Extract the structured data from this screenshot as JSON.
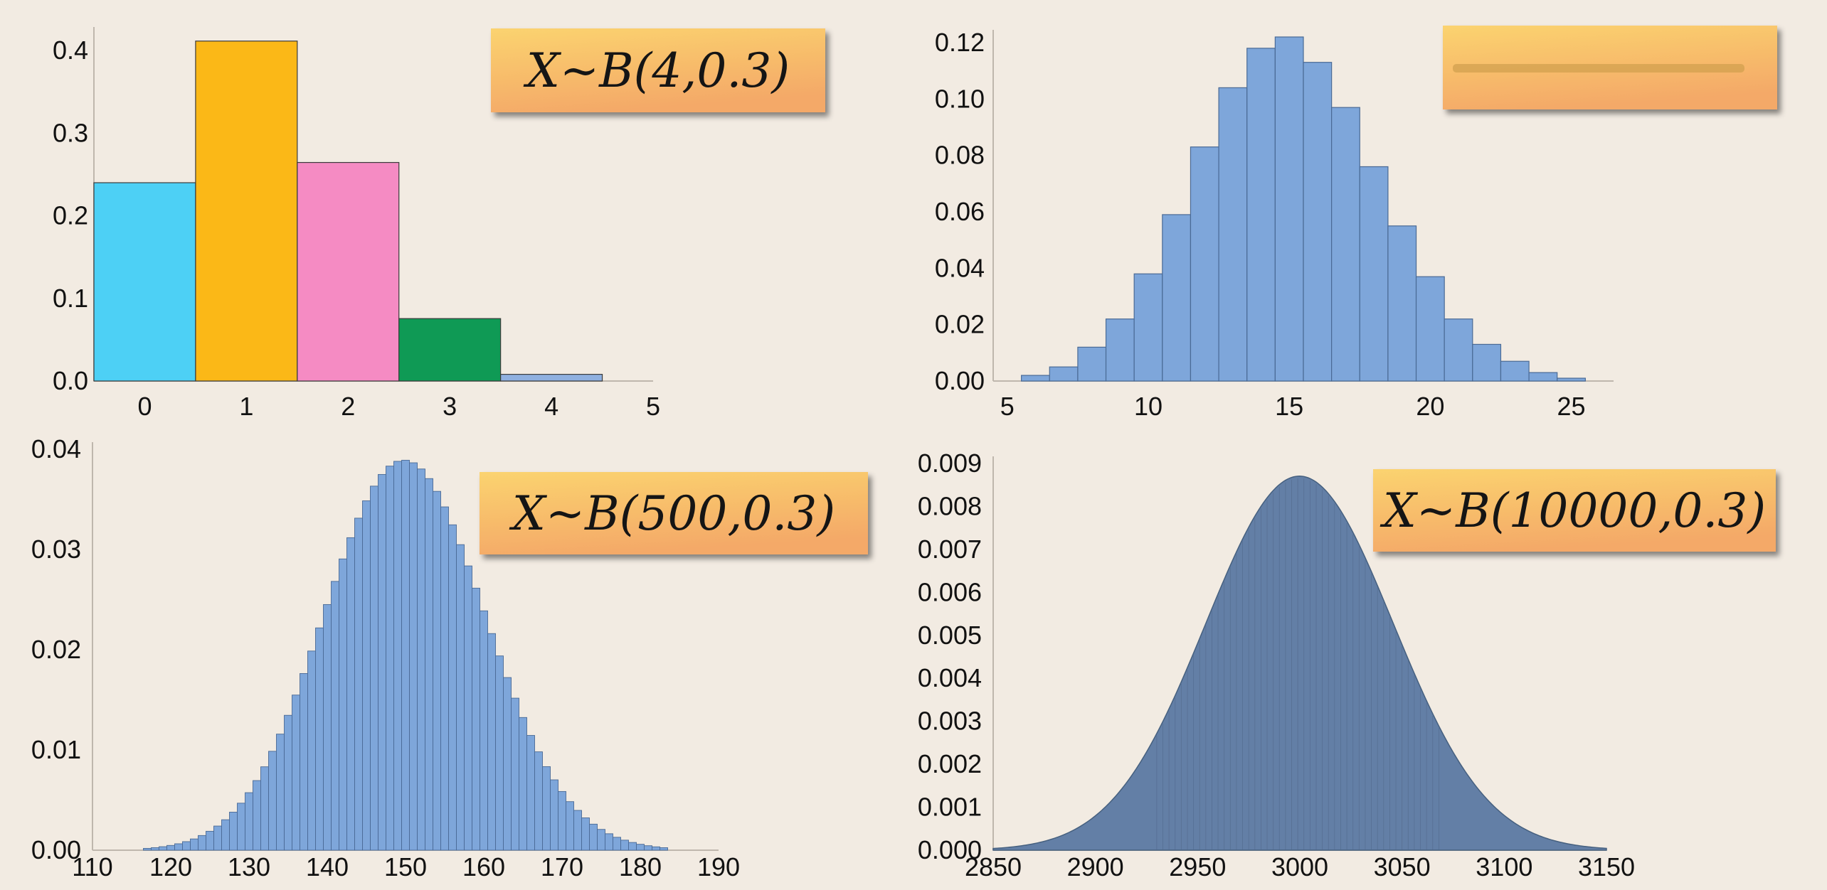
{
  "chart_data": [
    {
      "type": "bar",
      "title": "X~B(4,0.3)",
      "categories": [
        "0",
        "1",
        "2",
        "3",
        "4"
      ],
      "values": [
        0.2401,
        0.4116,
        0.2646,
        0.0756,
        0.0081
      ],
      "x_ticks": [
        "0",
        "1",
        "2",
        "3",
        "4",
        "5"
      ],
      "y_ticks": [
        "0.0",
        "0.1",
        "0.2",
        "0.3",
        "0.4"
      ],
      "ylim": [
        0,
        0.42
      ],
      "bar_colors": [
        "#4dd0f5",
        "#fbb817",
        "#f58bc3",
        "#0f9a55",
        "#8fb0e0"
      ],
      "grid": false
    },
    {
      "type": "bar",
      "title": "",
      "x": [
        6,
        7,
        8,
        9,
        10,
        11,
        12,
        13,
        14,
        15,
        16,
        17,
        18,
        19,
        20,
        21,
        22,
        23,
        24,
        25
      ],
      "values": [
        0.002,
        0.005,
        0.012,
        0.022,
        0.038,
        0.059,
        0.083,
        0.104,
        0.118,
        0.122,
        0.113,
        0.097,
        0.076,
        0.055,
        0.037,
        0.022,
        0.013,
        0.007,
        0.003,
        0.001
      ],
      "x_ticks": [
        "5",
        "10",
        "15",
        "20",
        "25"
      ],
      "y_ticks": [
        "0.00",
        "0.02",
        "0.04",
        "0.06",
        "0.08",
        "0.10",
        "0.12"
      ],
      "xlim": [
        4.5,
        26.5
      ],
      "ylim": [
        0,
        0.122
      ],
      "bar_color": "#7ea6da",
      "grid": false
    },
    {
      "type": "bar",
      "title": "X~B(500,0.3)",
      "n": 500,
      "p": 0.3,
      "x_range": [
        117,
        183
      ],
      "peak_value": 0.0386,
      "x_ticks": [
        "110",
        "120",
        "130",
        "140",
        "150",
        "160",
        "170",
        "180",
        "190"
      ],
      "y_ticks": [
        "0.00",
        "0.01",
        "0.02",
        "0.03",
        "0.04"
      ],
      "xlim": [
        110,
        190
      ],
      "ylim": [
        0,
        0.04
      ],
      "bar_color": "#7ea6da",
      "grid": false
    },
    {
      "type": "area",
      "title": "X~B(10000,0.3)",
      "n": 10000,
      "p": 0.3,
      "x_range": [
        2850,
        3150
      ],
      "peak_value": 0.0087,
      "x_ticks": [
        "2850",
        "2900",
        "2950",
        "3000",
        "3050",
        "3100",
        "3150"
      ],
      "y_ticks": [
        "0.000",
        "0.001",
        "0.002",
        "0.003",
        "0.004",
        "0.005",
        "0.006",
        "0.007",
        "0.008",
        "0.009"
      ],
      "xlim": [
        2850,
        3150
      ],
      "ylim": [
        0,
        0.009
      ],
      "fill_color": "#637fa6",
      "grid": false
    }
  ],
  "colors": {
    "background": "#f2ebe2",
    "title_box_top": "#fbd36f",
    "title_box_bottom": "#f4a968",
    "axis": "#bfb7ad"
  }
}
